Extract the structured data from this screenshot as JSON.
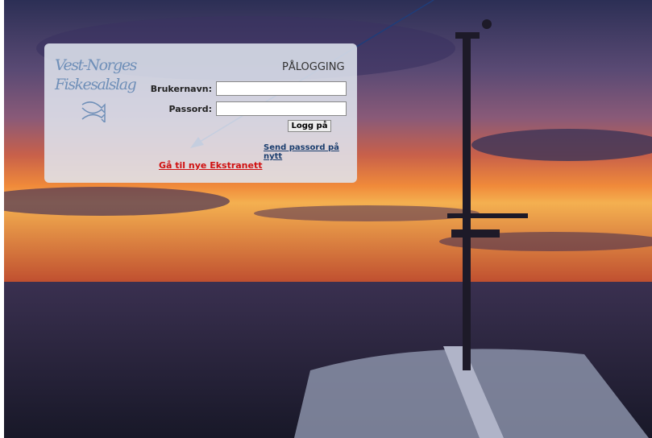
{
  "logo": {
    "line1": "Vest-Norges",
    "line2": "Fiskesalslag"
  },
  "login": {
    "title": "PÅLOGGING",
    "username_label": "Brukernavn:",
    "password_label": "Passord:",
    "submit": "Logg på",
    "resend_link": "Send passord på nytt",
    "extranet_link": "Gå til nye Ekstranett"
  }
}
